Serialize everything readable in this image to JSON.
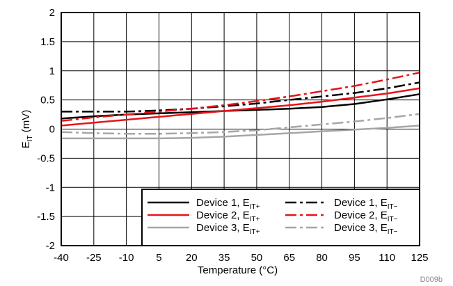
{
  "chart_data": {
    "type": "line",
    "xlabel": "Temperature (°C)",
    "ylabel_main": "E",
    "ylabel_sub": "IT",
    "ylabel_unit": " (mV)",
    "xlim": [
      -40,
      125
    ],
    "ylim": [
      -2,
      2
    ],
    "x_ticks": [
      -40,
      -25,
      -10,
      5,
      20,
      35,
      50,
      65,
      80,
      95,
      110,
      125
    ],
    "x_tick_labels": [
      "-40",
      "-25",
      "-10",
      "5",
      "20",
      "35",
      "50",
      "65",
      "80",
      "95",
      "110",
      "125"
    ],
    "y_ticks": [
      2,
      1.5,
      1,
      0.5,
      0,
      -0.5,
      -1,
      -1.5,
      -2
    ],
    "y_tick_labels": [
      "2",
      "1.5",
      "1",
      "0.5",
      "0",
      "-0.5",
      "-1",
      "-1.5",
      "-2"
    ],
    "grid": true,
    "legend_position": "bottom-right",
    "figure_id": "D009b",
    "series": [
      {
        "name": "Device 1, EIT+",
        "label": "Device 1, E",
        "sub": "IT+",
        "color": "#000000",
        "dash": "solid",
        "x": [
          -40,
          -25,
          -10,
          5,
          20,
          35,
          50,
          65,
          80,
          95,
          110,
          125
        ],
        "values": [
          0.18,
          0.22,
          0.25,
          0.27,
          0.29,
          0.31,
          0.33,
          0.35,
          0.38,
          0.43,
          0.51,
          0.6
        ]
      },
      {
        "name": "Device 1, EIT−",
        "label": "Device 1, E",
        "sub": "IT−",
        "color": "#000000",
        "dash": "dashdot",
        "x": [
          -40,
          -25,
          -10,
          5,
          20,
          35,
          50,
          65,
          80,
          95,
          110,
          125
        ],
        "values": [
          0.3,
          0.3,
          0.3,
          0.32,
          0.35,
          0.39,
          0.44,
          0.5,
          0.56,
          0.62,
          0.7,
          0.8
        ]
      },
      {
        "name": "Device 2, EIT+",
        "label": "Device 2, E",
        "sub": "IT+",
        "color": "#e8141a",
        "dash": "solid",
        "x": [
          -40,
          -25,
          -10,
          5,
          20,
          35,
          50,
          65,
          80,
          95,
          110,
          125
        ],
        "values": [
          0.06,
          0.11,
          0.16,
          0.21,
          0.26,
          0.31,
          0.36,
          0.41,
          0.47,
          0.54,
          0.61,
          0.7
        ]
      },
      {
        "name": "Device 2, EIT−",
        "label": "Device 2, E",
        "sub": "IT−",
        "color": "#e8141a",
        "dash": "dashdot",
        "x": [
          -40,
          -25,
          -10,
          5,
          20,
          35,
          50,
          65,
          80,
          95,
          110,
          125
        ],
        "values": [
          0.14,
          0.2,
          0.25,
          0.3,
          0.35,
          0.41,
          0.48,
          0.56,
          0.65,
          0.74,
          0.85,
          0.97
        ]
      },
      {
        "name": "Device 3, EIT+",
        "label": "Device 3, E",
        "sub": "IT+",
        "color": "#a6a6a6",
        "dash": "solid",
        "x": [
          -40,
          -25,
          -10,
          5,
          20,
          35,
          50,
          65,
          80,
          95,
          110,
          125
        ],
        "values": [
          -0.16,
          -0.16,
          -0.16,
          -0.16,
          -0.15,
          -0.13,
          -0.1,
          -0.07,
          -0.04,
          -0.01,
          0.02,
          0.06
        ]
      },
      {
        "name": "Device 3, EIT−",
        "label": "Device 3, E",
        "sub": "IT−",
        "color": "#a6a6a6",
        "dash": "dashdot",
        "x": [
          -40,
          -25,
          -10,
          5,
          20,
          35,
          50,
          65,
          80,
          95,
          110,
          125
        ],
        "values": [
          -0.05,
          -0.07,
          -0.08,
          -0.08,
          -0.07,
          -0.05,
          -0.02,
          0.03,
          0.08,
          0.13,
          0.19,
          0.26
        ]
      }
    ]
  }
}
